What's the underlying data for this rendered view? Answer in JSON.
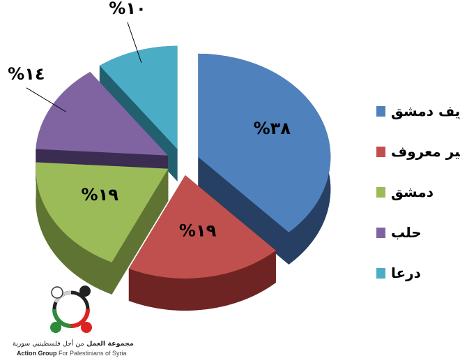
{
  "chart_data": {
    "type": "pie",
    "style": "3d-exploded",
    "categories": [
      "ريف دمشق",
      "غير معروف",
      "دمشق",
      "حلب",
      "درعا"
    ],
    "values": [
      38,
      19,
      19,
      14,
      10
    ],
    "data_labels": [
      "%٣٨",
      "%١٩",
      "%١٩",
      "%١٤",
      "%١٠"
    ],
    "colors": [
      "#4f81bd",
      "#c0504d",
      "#9bbb59",
      "#8064a2",
      "#4bacc6"
    ],
    "side_colors": [
      "#263f62",
      "#6e2422",
      "#5f7433",
      "#3b2c52",
      "#23606f"
    ],
    "legend_position": "right"
  },
  "logo": {
    "text_ar_bold": "مجموعة العمل",
    "text_ar": "من أجل فلسطينيي سورية",
    "text_en_bold": "Action Group",
    "text_en": "For Palestinians of Syria"
  }
}
